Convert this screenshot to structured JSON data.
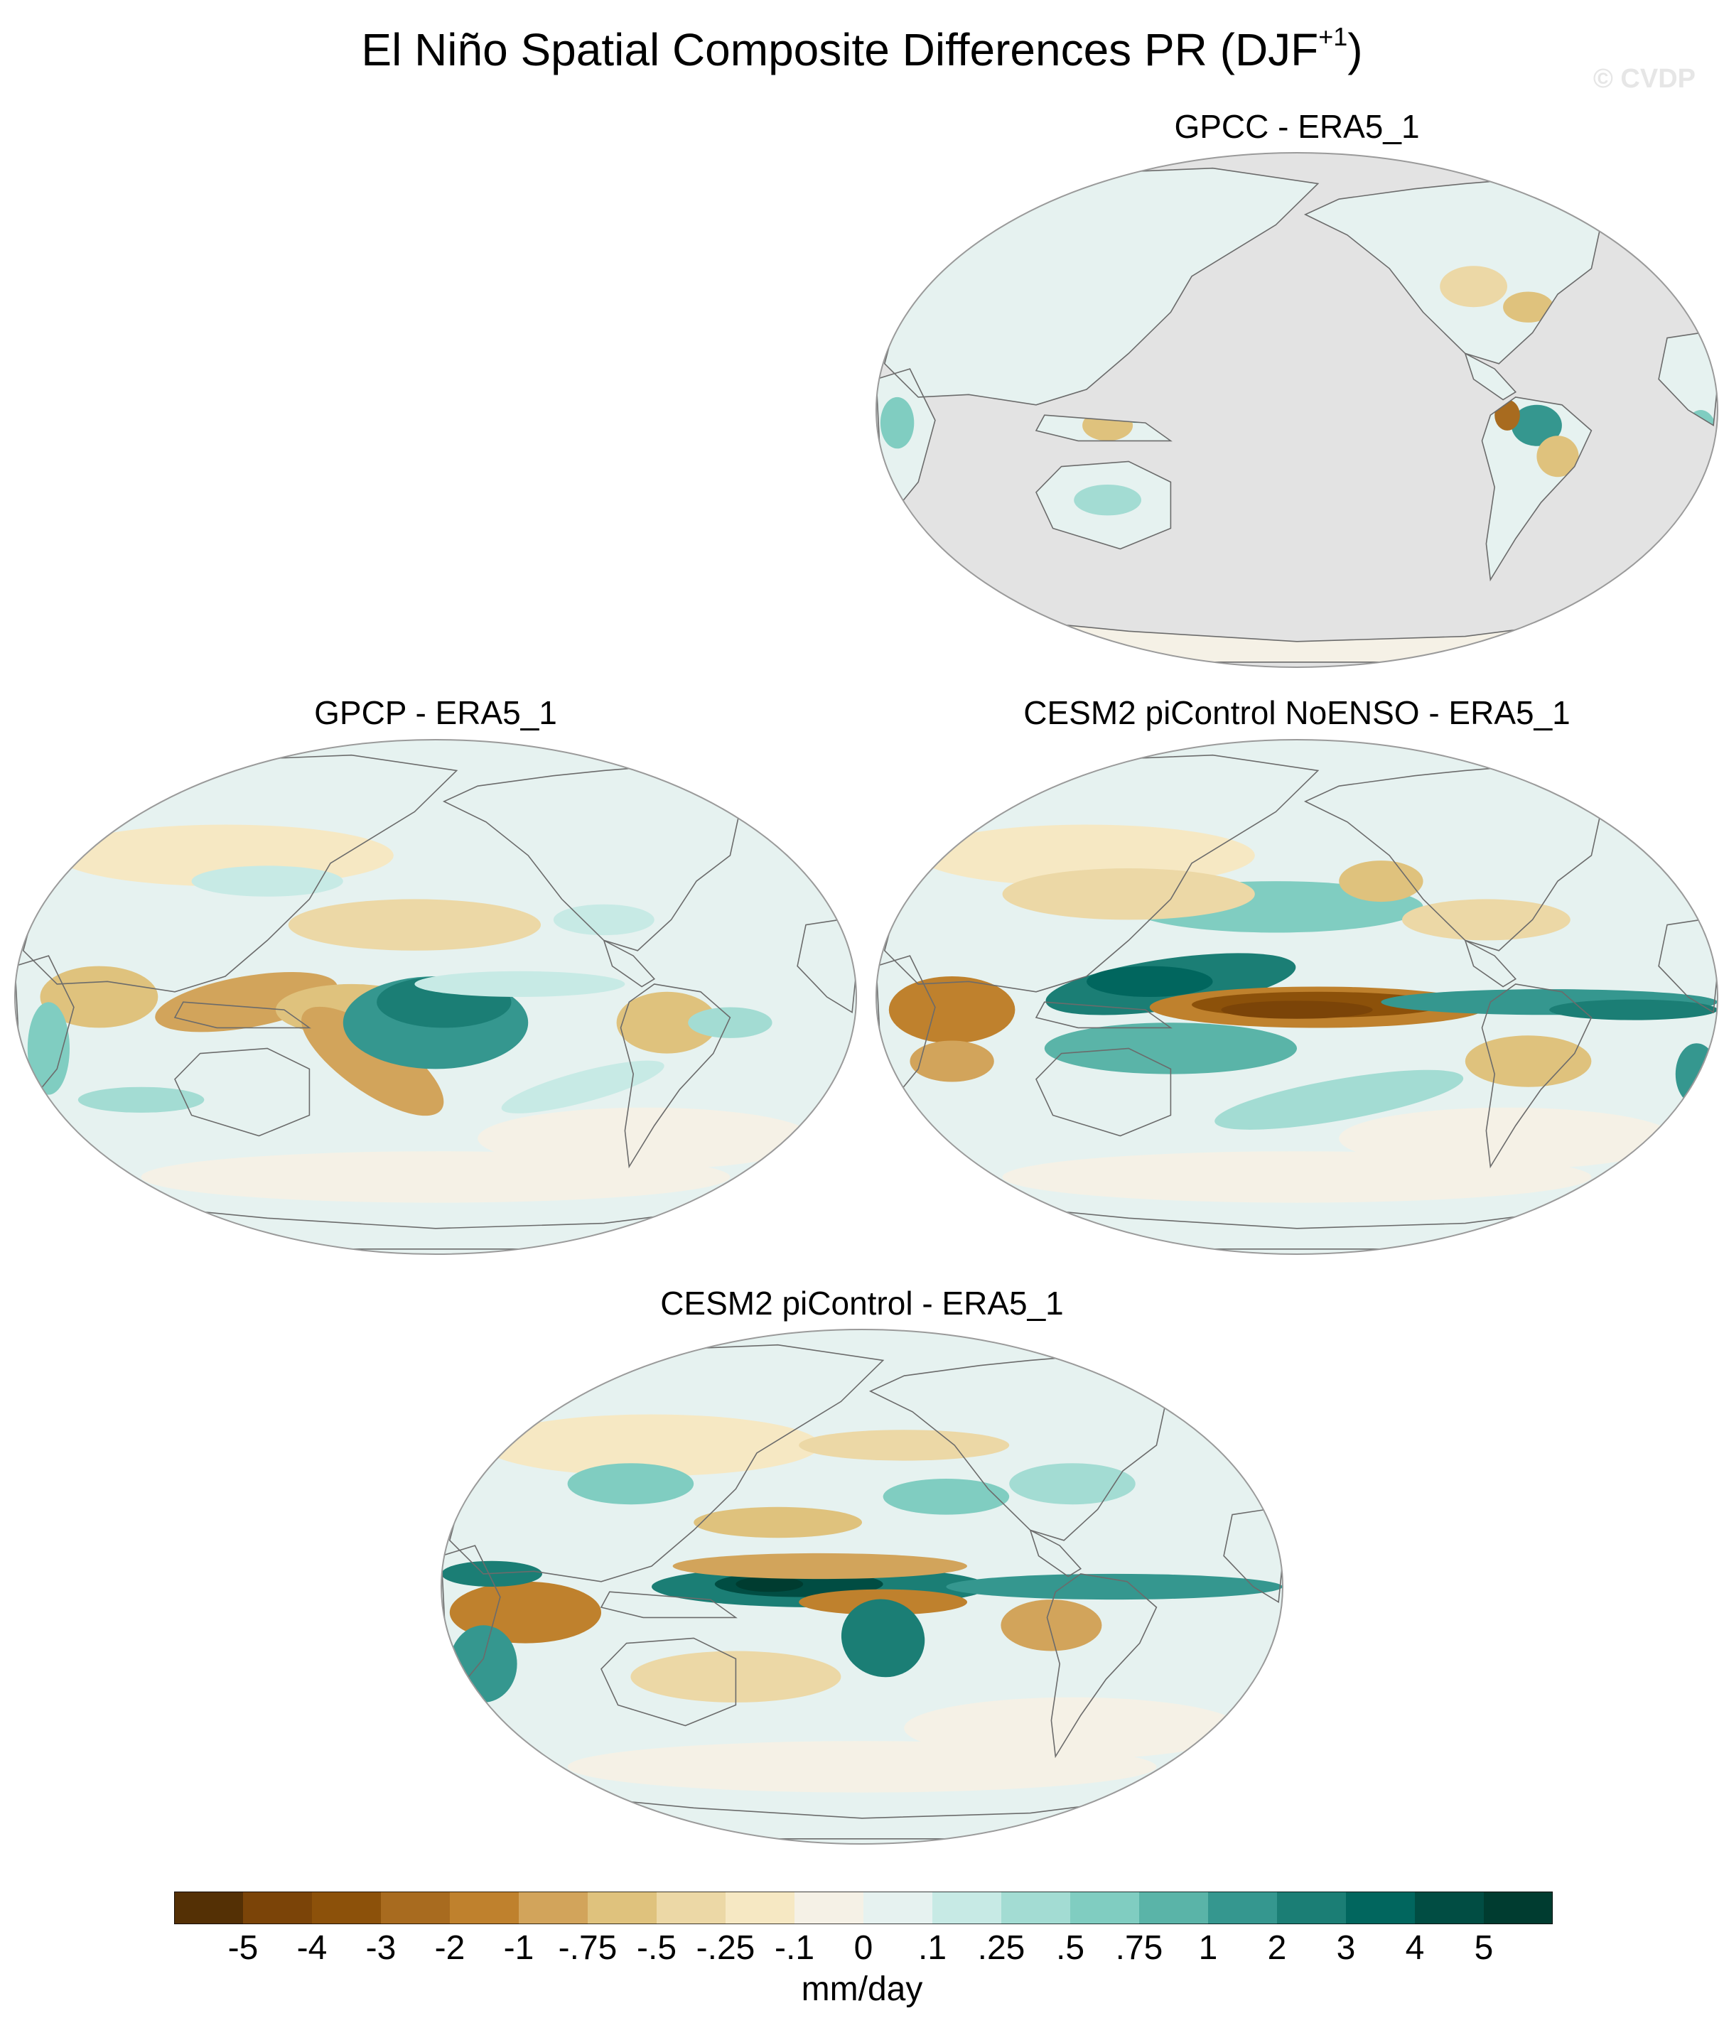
{
  "figure": {
    "title_main": "El Niño Spatial Composite Differences PR (DJF",
    "title_sup": "+1",
    "title_close": ")",
    "watermark": "© CVDP"
  },
  "panels": [
    {
      "id": "gpcc",
      "title": "GPCC - ERA5_1",
      "coverage": "land-only",
      "missing_color": "#e3e3e3"
    },
    {
      "id": "gpcp",
      "title": "GPCP - ERA5_1",
      "coverage": "global"
    },
    {
      "id": "cesm2_noenso",
      "title": "CESM2 piControl NoENSO - ERA5_1",
      "coverage": "global"
    },
    {
      "id": "cesm2",
      "title": "CESM2 piControl - ERA5_1",
      "coverage": "global"
    }
  ],
  "colorbar": {
    "unit": "mm/day",
    "levels": [
      "-5",
      "-4",
      "-3",
      "-2",
      "-1",
      "-.75",
      "-.5",
      "-.25",
      "-.1",
      "0",
      ".1",
      ".25",
      ".5",
      ".75",
      "1",
      "2",
      "3",
      "4",
      "5"
    ],
    "colors": [
      "#543005",
      "#7b4408",
      "#8c510a",
      "#a86b1f",
      "#bf812d",
      "#d2a45b",
      "#dfc27d",
      "#ecd8a6",
      "#f6e8c3",
      "#f5f1e6",
      "#e6f2f0",
      "#c7eae5",
      "#a3dcd3",
      "#80cdc1",
      "#5ab4a8",
      "#35978f",
      "#1b7e75",
      "#01665e",
      "#014d43",
      "#003c30"
    ]
  }
}
